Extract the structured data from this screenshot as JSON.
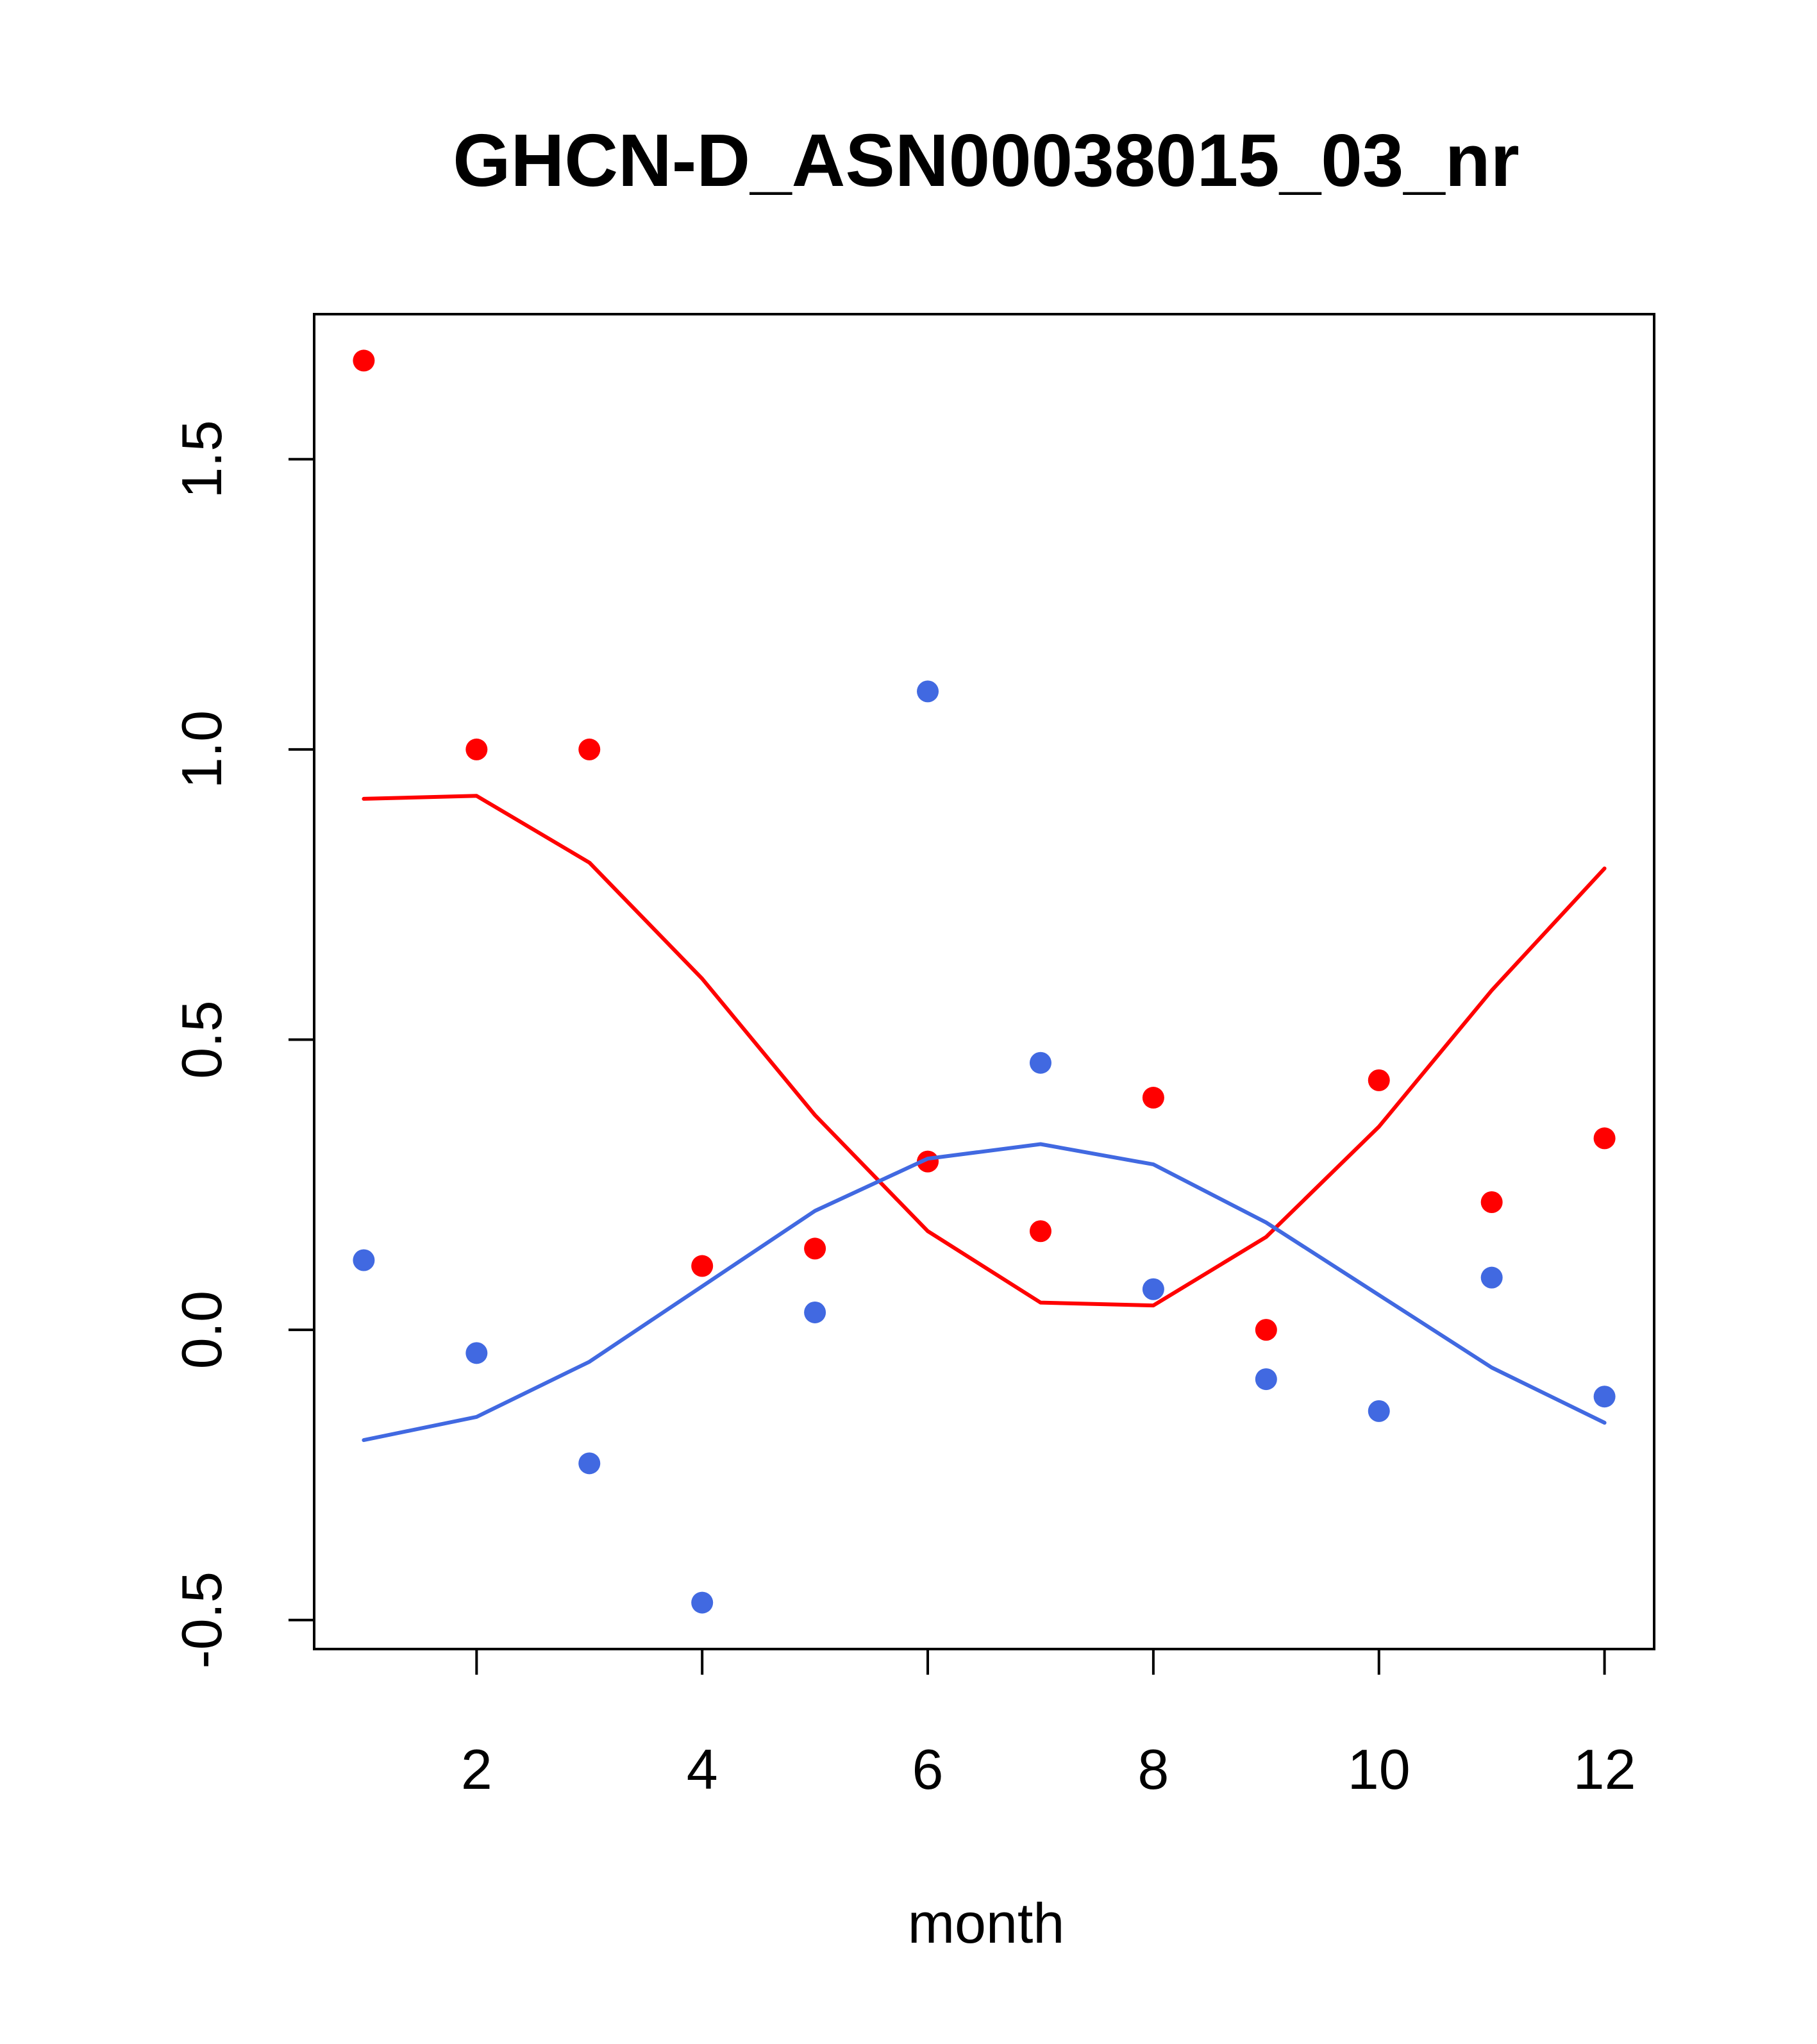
{
  "chart_data": {
    "type": "scatter",
    "title": "GHCN-D_ASN00038015_03_nr",
    "xlabel": "month",
    "ylabel": "",
    "xlim": [
      0.56,
      12.44
    ],
    "ylim": [
      -0.55,
      1.75
    ],
    "x_ticks": [
      2,
      4,
      6,
      8,
      10,
      12
    ],
    "y_ticks": [
      -0.5,
      0.0,
      0.5,
      1.0,
      1.5
    ],
    "x_tick_labels": [
      "2",
      "4",
      "6",
      "8",
      "10",
      "12"
    ],
    "y_tick_labels": [
      "-0.5",
      "0.0",
      "0.5",
      "1.0",
      "1.5"
    ],
    "grid": false,
    "legend": "none",
    "x": [
      1,
      2,
      3,
      4,
      5,
      6,
      7,
      8,
      9,
      10,
      11,
      12
    ],
    "series": [
      {
        "color": "#ff0000",
        "points": [
          1.67,
          1.0,
          1.0,
          0.11,
          0.14,
          0.29,
          0.17,
          0.4,
          0.0,
          0.43,
          0.22,
          0.33
        ],
        "line": [
          0.915,
          0.92,
          0.805,
          0.605,
          0.37,
          0.17,
          0.047,
          0.042,
          0.16,
          0.35,
          0.585,
          0.795
        ]
      },
      {
        "color": "#4169e1",
        "points": [
          0.12,
          -0.04,
          -0.23,
          -0.47,
          0.03,
          1.1,
          0.46,
          0.07,
          -0.085,
          -0.14,
          0.09,
          -0.115
        ],
        "line": [
          -0.19,
          -0.15,
          -0.055,
          0.075,
          0.205,
          0.295,
          0.32,
          0.285,
          0.185,
          0.06,
          -0.065,
          -0.16
        ]
      }
    ]
  }
}
